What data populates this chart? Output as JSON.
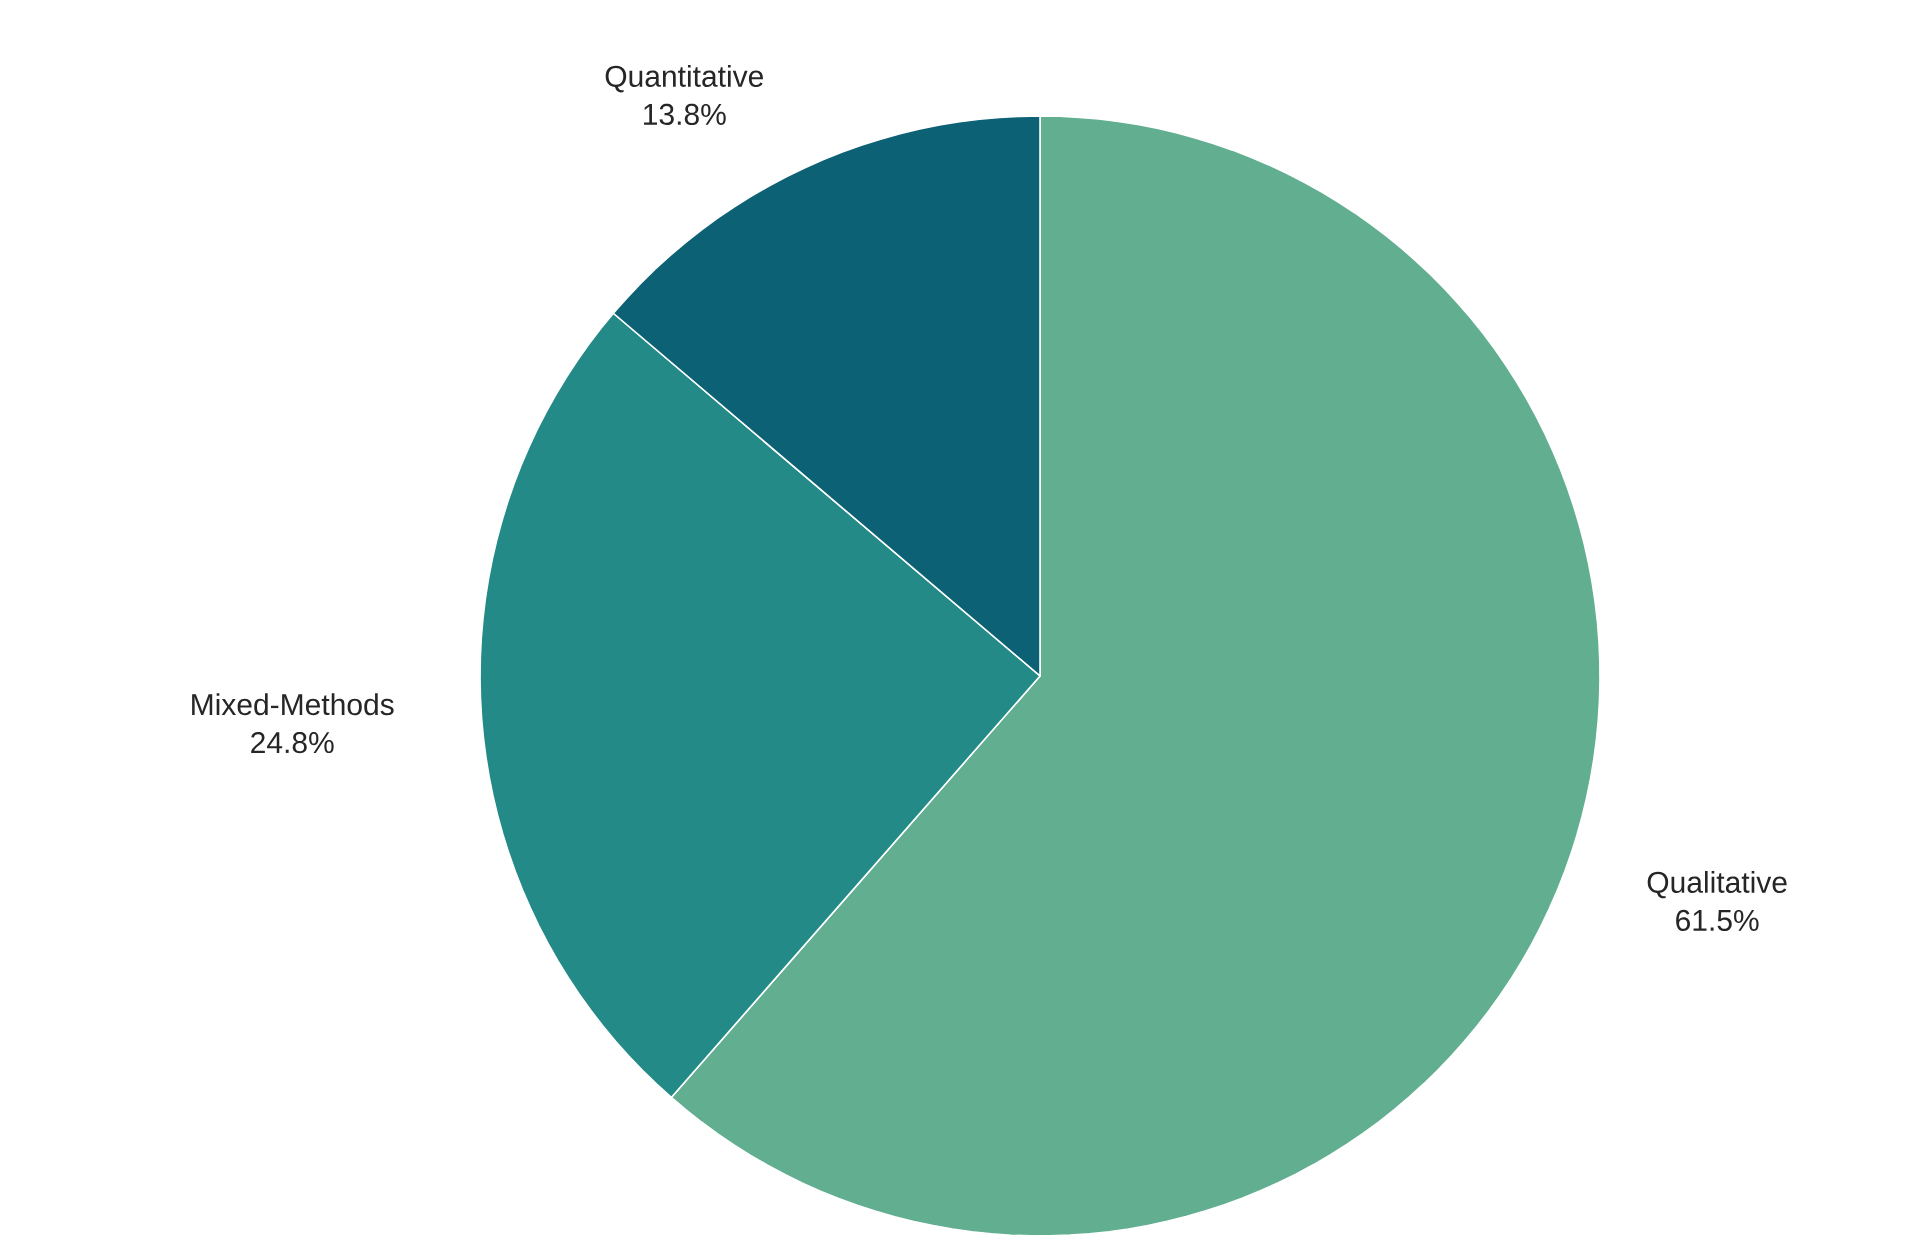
{
  "chart_data": {
    "type": "pie",
    "categories": [
      "Qualitative",
      "Mixed-Methods",
      "Quantitative"
    ],
    "values": [
      61.5,
      24.8,
      13.8
    ],
    "value_labels": [
      "61.5%",
      "24.8%",
      "13.8%"
    ],
    "colors": [
      "#62ae90",
      "#238a87",
      "#0c6175"
    ]
  }
}
